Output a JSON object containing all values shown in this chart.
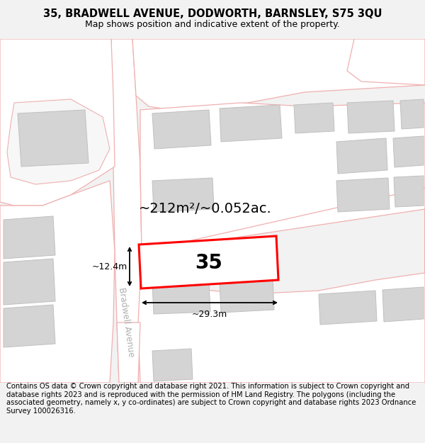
{
  "title": "35, BRADWELL AVENUE, DODWORTH, BARNSLEY, S75 3QU",
  "subtitle": "Map shows position and indicative extent of the property.",
  "area_label": "~212m²/~0.052ac.",
  "property_number": "35",
  "width_label": "~29.3m",
  "height_label": "~12.4m",
  "street_label": "Bradwell Avenue",
  "footer": "Contains OS data © Crown copyright and database right 2021. This information is subject to Crown copyright and database rights 2023 and is reproduced with the permission of HM Land Registry. The polygons (including the associated geometry, namely x, y co-ordinates) are subject to Crown copyright and database rights 2023 Ordnance Survey 100026316.",
  "bg_color": "#f2f2f2",
  "map_bg": "#f7f7f7",
  "road_color": "#f0b0b0",
  "building_color": "#d4d4d4",
  "building_edge": "#c0c0c0",
  "property_fill": "#ffffff",
  "property_edge": "#ff0000",
  "title_fontsize": 10.5,
  "subtitle_fontsize": 9,
  "footer_fontsize": 7.2,
  "area_fontsize": 14,
  "number_fontsize": 20,
  "dim_fontsize": 9
}
